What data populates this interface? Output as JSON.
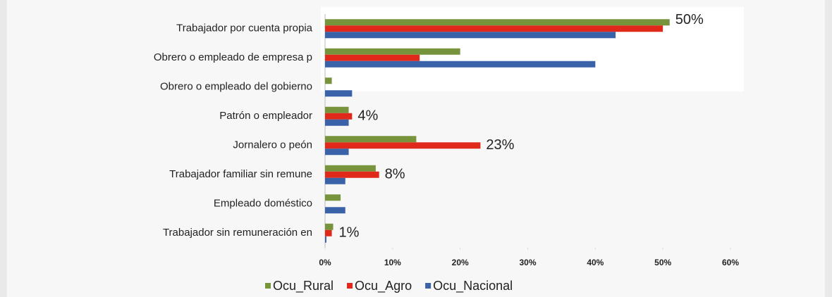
{
  "chart_data": {
    "type": "hbar",
    "categories": [
      "Trabajador por cuenta propia",
      "Obrero o empleado de empresa p",
      "Obrero o empleado del gobierno",
      "Patrón o empleador",
      "Jornalero o peón",
      "Trabajador familiar sin remune",
      "Empleado doméstico",
      "Trabajador sin remuneración en"
    ],
    "series": [
      {
        "name": "Ocu_Rural",
        "color": "#77933c",
        "values": [
          51,
          20,
          1,
          3.5,
          13.5,
          7.5,
          2.3,
          1.2
        ]
      },
      {
        "name": "Ocu_Agro",
        "color": "#e0281b",
        "values": [
          50,
          14,
          0,
          4,
          23,
          8,
          0,
          1
        ],
        "value_labels": [
          "50%",
          null,
          null,
          "4%",
          "23%",
          "8%",
          null,
          "1%"
        ]
      },
      {
        "name": "Ocu_Nacional",
        "color": "#3a62a8",
        "values": [
          43,
          40,
          4,
          3.5,
          3.5,
          3,
          3,
          0.2
        ]
      }
    ],
    "xlim": [
      0,
      60
    ],
    "xticks": [
      {
        "value": 0,
        "label": "0%"
      },
      {
        "value": 10,
        "label": "10%"
      },
      {
        "value": 20,
        "label": "20%"
      },
      {
        "value": 30,
        "label": "30%"
      },
      {
        "value": 40,
        "label": "40%"
      },
      {
        "value": 50,
        "label": "50%"
      },
      {
        "value": 60,
        "label": "60%"
      }
    ],
    "legend": "bottom"
  }
}
